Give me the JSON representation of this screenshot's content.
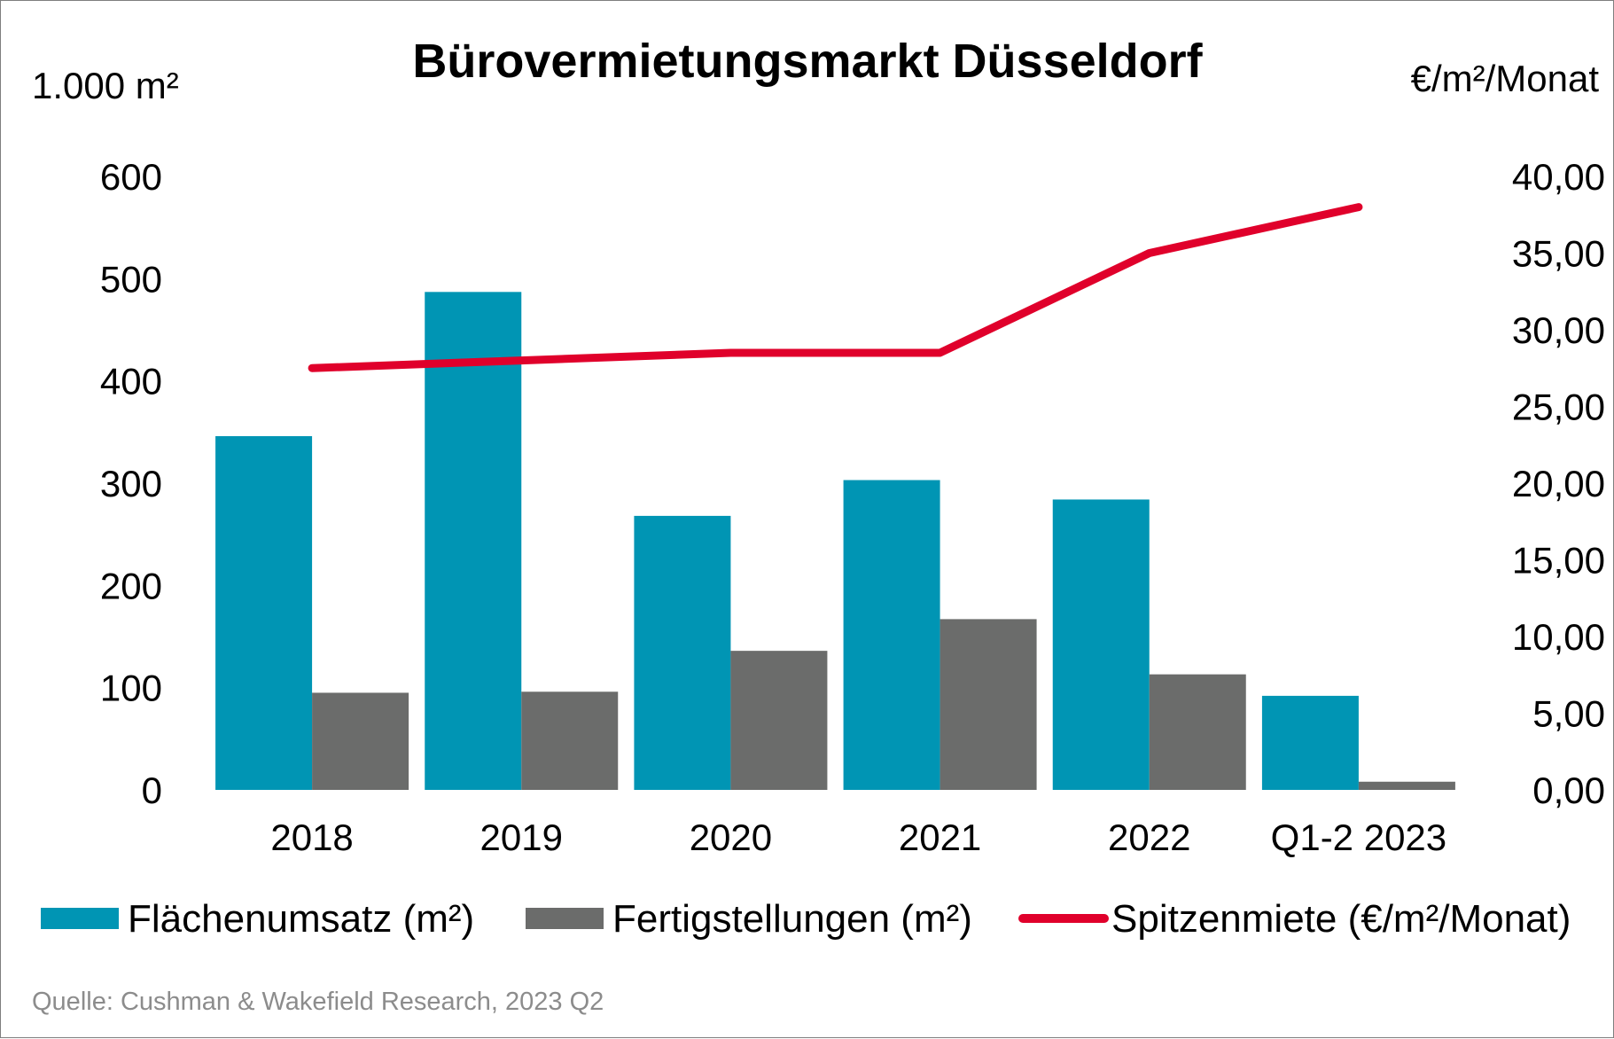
{
  "chart_data": {
    "type": "bar",
    "title": "Bürovermietungsmarkt Düsseldorf",
    "y_left_unit": "1.000 m²",
    "y_right_unit": "€/m²/Monat",
    "categories": [
      "2018",
      "2019",
      "2020",
      "2021",
      "2022",
      "Q1-2 2023"
    ],
    "y_left_ticks": [
      "0",
      "100",
      "200",
      "300",
      "400",
      "500",
      "600"
    ],
    "y_right_ticks": [
      "0,00",
      "5,00",
      "10,00",
      "15,00",
      "20,00",
      "25,00",
      "30,00",
      "35,00",
      "40,00"
    ],
    "ylim_left": [
      0,
      600
    ],
    "ylim_right": [
      0,
      40
    ],
    "grid": false,
    "legend_position": "bottom",
    "series": [
      {
        "name": "Flächenumsatz (m²)",
        "type": "bar",
        "axis": "left",
        "color": "#0095b4",
        "values": [
          346,
          487,
          268,
          303,
          284,
          92
        ]
      },
      {
        "name": "Fertigstellungen (m²)",
        "type": "bar",
        "axis": "left",
        "color": "#6b6c6b",
        "values": [
          95,
          96,
          136,
          167,
          113,
          8
        ]
      },
      {
        "name": "Spitzenmiete (€/m²/Monat)",
        "type": "line",
        "axis": "right",
        "color": "#e0002b",
        "values": [
          27.5,
          28.0,
          28.5,
          28.5,
          35.0,
          38.0
        ]
      }
    ],
    "source": "Quelle: Cushman & Wakefield Research, 2023 Q2"
  }
}
